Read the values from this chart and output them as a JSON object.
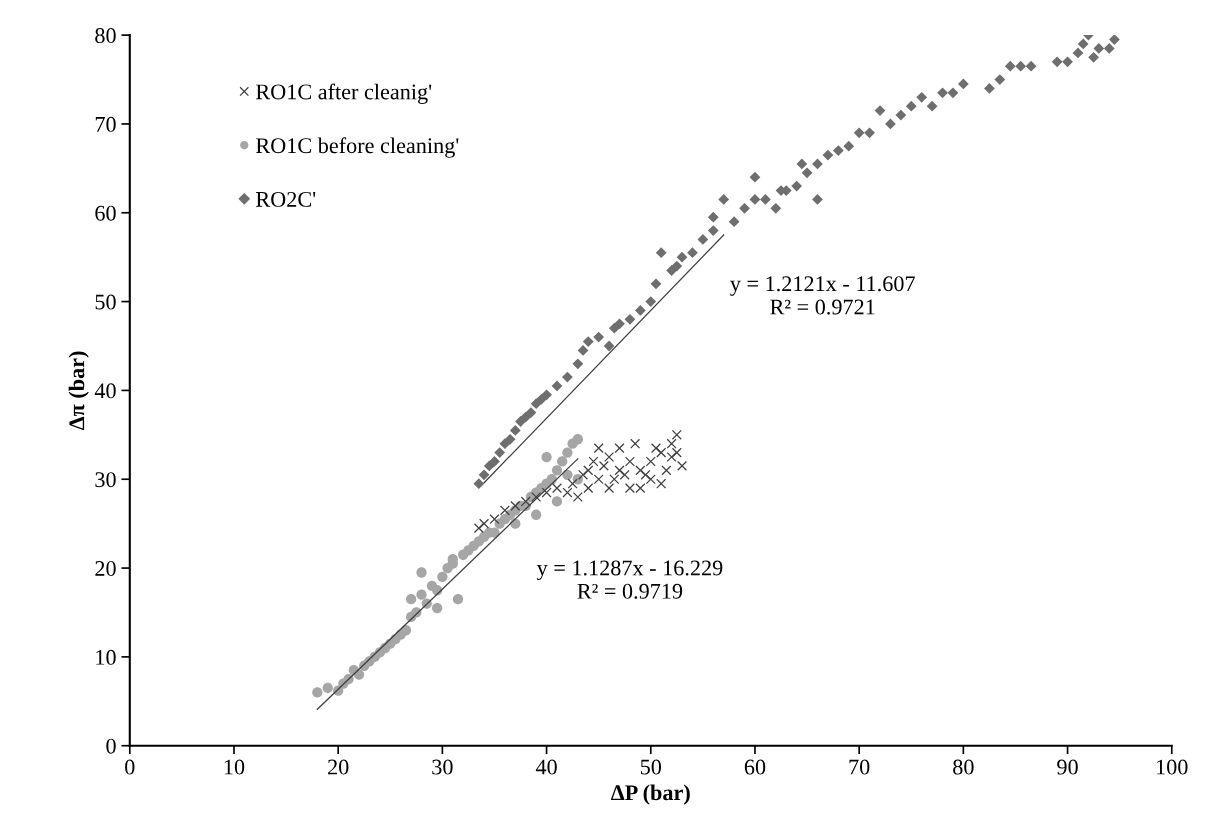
{
  "chart_data": {
    "type": "scatter",
    "xlabel": "ΔP (bar)",
    "ylabel": "Δπ (bar)",
    "xlim": [
      0,
      100
    ],
    "xticks": [
      0,
      10,
      20,
      30,
      40,
      50,
      60,
      70,
      80,
      90,
      100
    ],
    "ylim": [
      0,
      80
    ],
    "yticks": [
      0,
      10,
      20,
      30,
      40,
      50,
      60,
      70,
      80
    ],
    "grid": false,
    "legend": "top left",
    "annotations": [
      "y = 1.2121x - 11.607\nR² = 0.9721",
      "y = 1.1287x - 16.229\nR² = 0.9719"
    ],
    "series": [
      {
        "name": "RO1C after cleanig'",
        "color": "#404040",
        "marker": "cross",
        "x": [
          33.5,
          34,
          35,
          36,
          37,
          38,
          39,
          40,
          41,
          42,
          42.5,
          43,
          43.5,
          44,
          44.5,
          45,
          45.5,
          46,
          46.5,
          47,
          47,
          47.5,
          48,
          48,
          48.5,
          49,
          49,
          49.5,
          50,
          50.5,
          51,
          51,
          51.5,
          52,
          52,
          52.5,
          52.5,
          53,
          45,
          46,
          44,
          50
        ],
        "values": [
          24.5,
          25,
          25.5,
          26.5,
          27,
          27.5,
          28,
          28.5,
          29,
          28.5,
          29.5,
          28,
          30.5,
          31,
          32,
          30,
          31.5,
          32.5,
          30,
          31,
          33.5,
          30.5,
          29,
          32,
          34,
          31,
          29,
          30.5,
          32,
          33.5,
          29.5,
          33,
          31,
          34,
          32.5,
          35,
          33,
          31.5,
          33.5,
          29,
          29,
          30
        ]
      },
      {
        "name": "RO1C before cleaning'",
        "color": "#a6a6a6",
        "marker": "circle",
        "x": [
          18,
          19,
          20,
          20.5,
          21,
          21.5,
          22,
          22.5,
          23,
          23.5,
          24,
          24.5,
          25,
          25.5,
          26,
          26.5,
          27,
          27,
          27.5,
          28,
          28,
          28.5,
          29,
          29.5,
          29.5,
          30,
          30.5,
          31,
          31.5,
          31,
          32,
          32.5,
          33,
          33.5,
          34,
          34.5,
          35,
          35.5,
          36,
          36.5,
          37,
          37.5,
          38,
          38.5,
          39,
          39.5,
          40,
          40,
          40.5,
          41,
          41.5,
          42,
          42.5,
          43,
          42,
          43,
          41,
          39,
          37
        ],
        "values": [
          6,
          6.5,
          6.2,
          7,
          7.5,
          8.5,
          8,
          9,
          9.5,
          10,
          10.5,
          11,
          11.5,
          12,
          12.5,
          13,
          14.5,
          16.5,
          15,
          17,
          19.5,
          16,
          18,
          17.5,
          15.5,
          19,
          20,
          20.5,
          16.5,
          21,
          21.5,
          22,
          22.5,
          23,
          23.5,
          24,
          24,
          25,
          25.5,
          26,
          26.5,
          27,
          27,
          28,
          28.5,
          29,
          29.5,
          32.5,
          30,
          31,
          32,
          33,
          34,
          34.5,
          30.5,
          30,
          27.5,
          26,
          25
        ]
      },
      {
        "name": "RO2C'",
        "color": "#6e6e6e",
        "marker": "diamond",
        "x": [
          33.5,
          34,
          34.5,
          35,
          35.5,
          36,
          36.5,
          37,
          37.5,
          38,
          38.5,
          39,
          39.5,
          40,
          41,
          42,
          43,
          43.5,
          44,
          45,
          46,
          46.5,
          47,
          48,
          49,
          50,
          50.5,
          51,
          52,
          52.5,
          53,
          54,
          55,
          56,
          56,
          57,
          58,
          59,
          60,
          60,
          61,
          62,
          62.5,
          63,
          64,
          64.5,
          65,
          66,
          66,
          67,
          68,
          69,
          70,
          71,
          72,
          73,
          74,
          75,
          76,
          77,
          78,
          79,
          80,
          82.5,
          83.5,
          84.5,
          85.5,
          86.5,
          89,
          90,
          91,
          91.5,
          92,
          92.5,
          93,
          94,
          94.5
        ],
        "values": [
          29.5,
          30.5,
          31.5,
          32,
          33,
          34,
          34.5,
          35.5,
          36.5,
          37,
          37.5,
          38.5,
          39,
          39.5,
          40.5,
          41.5,
          43,
          44.5,
          45.5,
          46,
          45,
          47,
          47.5,
          48,
          49,
          50,
          52,
          55.5,
          53.5,
          54,
          55,
          55.5,
          57,
          58,
          59.5,
          61.5,
          59,
          60.5,
          64,
          61.5,
          61.5,
          60.5,
          62.5,
          62.5,
          63,
          65.5,
          64.5,
          61.5,
          65.5,
          66.5,
          67,
          67.5,
          69,
          69,
          71.5,
          70,
          71,
          72,
          73,
          72,
          73.5,
          73.5,
          74.5,
          74,
          75,
          76.5,
          76.5,
          76.5,
          77,
          77,
          78,
          79,
          80,
          77.5,
          78.5,
          78.5,
          79.5
        ]
      },
      {
        "type": "line",
        "color": "#404040",
        "line_style": "solid",
        "x": [
          18,
          43
        ],
        "values": [
          4.1,
          32.3
        ]
      },
      {
        "type": "line",
        "color": "#404040",
        "line_style": "solid",
        "x": [
          34,
          57
        ],
        "values": [
          29.6,
          57.5
        ]
      }
    ]
  }
}
